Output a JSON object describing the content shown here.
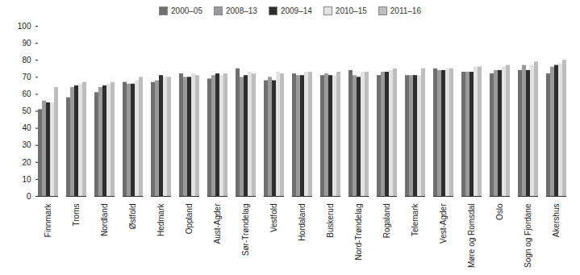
{
  "chart_data": {
    "type": "bar",
    "categories": [
      "Finnmark",
      "Troms",
      "Nordland",
      "Østfold",
      "Hedmark",
      "Oppland",
      "Aust-Agder",
      "Sør-Trøndelag",
      "Vestfold",
      "Hordaland",
      "Buskerud",
      "Nord-Trøndelag",
      "Rogaland",
      "Telemark",
      "Vest-Agder",
      "Møre og Romsdal",
      "Oslo",
      "Sogn og Fjordane",
      "Akershus"
    ],
    "series": [
      {
        "name": "2000–05",
        "color": "#6f6f6f",
        "values": [
          51,
          58,
          61,
          67,
          67,
          72,
          69,
          75,
          68,
          72,
          71,
          74,
          71,
          71,
          75,
          73,
          72,
          74,
          72
        ]
      },
      {
        "name": "2008–13",
        "color": "#9a9a9a",
        "values": [
          56,
          64,
          64,
          66,
          68,
          70,
          71,
          70,
          70,
          71,
          72,
          71,
          73,
          71,
          74,
          73,
          74,
          77,
          76
        ]
      },
      {
        "name": "2009–14",
        "color": "#2e2e2e",
        "values": [
          55,
          65,
          65,
          66,
          71,
          70,
          72,
          71,
          68,
          71,
          71,
          70,
          73,
          71,
          74,
          73,
          74,
          74,
          77
        ]
      },
      {
        "name": "2010–15",
        "color": "#e2e2e2",
        "values": [
          55,
          66,
          66,
          68,
          70,
          72,
          71,
          73,
          73,
          73,
          71,
          73,
          74,
          71,
          75,
          76,
          76,
          77,
          78
        ]
      },
      {
        "name": "2011–16",
        "color": "#bdbdbd",
        "values": [
          64,
          67,
          67,
          70,
          70,
          71,
          72,
          72,
          72,
          73,
          73,
          73,
          75,
          75,
          75,
          76,
          77,
          79,
          80
        ]
      }
    ],
    "ylim": [
      0,
      100
    ],
    "yticks": [
      0,
      10,
      20,
      30,
      40,
      50,
      60,
      70,
      80,
      90,
      100
    ],
    "grid": false,
    "legend": "top"
  }
}
